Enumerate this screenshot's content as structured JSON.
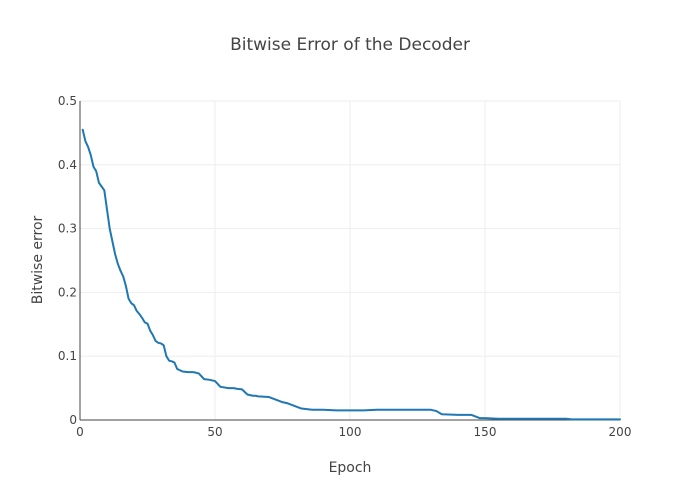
{
  "chart_data": {
    "type": "line",
    "title": "Bitwise Error of the Decoder",
    "xlabel": "Epoch",
    "ylabel": "Bitwise error",
    "xlim": [
      0,
      200
    ],
    "ylim": [
      0,
      0.5
    ],
    "xticks": [
      0,
      50,
      100,
      150,
      200
    ],
    "yticks": [
      0,
      0.1,
      0.2,
      0.3,
      0.4,
      0.5
    ],
    "xtick_labels": [
      "0",
      "50",
      "100",
      "150",
      "200"
    ],
    "ytick_labels": [
      "0",
      "0.1",
      "0.2",
      "0.3",
      "0.4",
      "0.5"
    ],
    "grid": true,
    "legend": false,
    "series": [
      {
        "color": "#1f77b4",
        "x": [
          1,
          2,
          3,
          4,
          5,
          6,
          7,
          8,
          9,
          10,
          11,
          12,
          13,
          14,
          15,
          16,
          17,
          18,
          19,
          20,
          21,
          22,
          23,
          24,
          25,
          26,
          27,
          28,
          29,
          30,
          31,
          32,
          33,
          34,
          35,
          36,
          37,
          38,
          40,
          42,
          44,
          46,
          48,
          50,
          52,
          55,
          57,
          58,
          60,
          62,
          64,
          65,
          66,
          70,
          75,
          77,
          82,
          84,
          86,
          90,
          95,
          100,
          105,
          110,
          115,
          120,
          125,
          130,
          132,
          134,
          140,
          142,
          145,
          148,
          150,
          155,
          160,
          170,
          175,
          180,
          182,
          190,
          200
        ],
        "y": [
          0.455,
          0.437,
          0.428,
          0.415,
          0.397,
          0.39,
          0.372,
          0.366,
          0.36,
          0.33,
          0.3,
          0.28,
          0.26,
          0.245,
          0.234,
          0.225,
          0.21,
          0.19,
          0.183,
          0.18,
          0.171,
          0.166,
          0.16,
          0.153,
          0.151,
          0.14,
          0.133,
          0.124,
          0.121,
          0.12,
          0.117,
          0.1,
          0.093,
          0.092,
          0.09,
          0.08,
          0.078,
          0.076,
          0.075,
          0.075,
          0.073,
          0.064,
          0.063,
          0.061,
          0.052,
          0.05,
          0.05,
          0.049,
          0.048,
          0.04,
          0.038,
          0.038,
          0.037,
          0.036,
          0.028,
          0.026,
          0.018,
          0.017,
          0.016,
          0.016,
          0.015,
          0.015,
          0.015,
          0.016,
          0.016,
          0.016,
          0.016,
          0.016,
          0.014,
          0.009,
          0.008,
          0.008,
          0.008,
          0.003,
          0.003,
          0.002,
          0.002,
          0.002,
          0.002,
          0.002,
          0.001,
          0.001,
          0.001
        ]
      }
    ]
  }
}
